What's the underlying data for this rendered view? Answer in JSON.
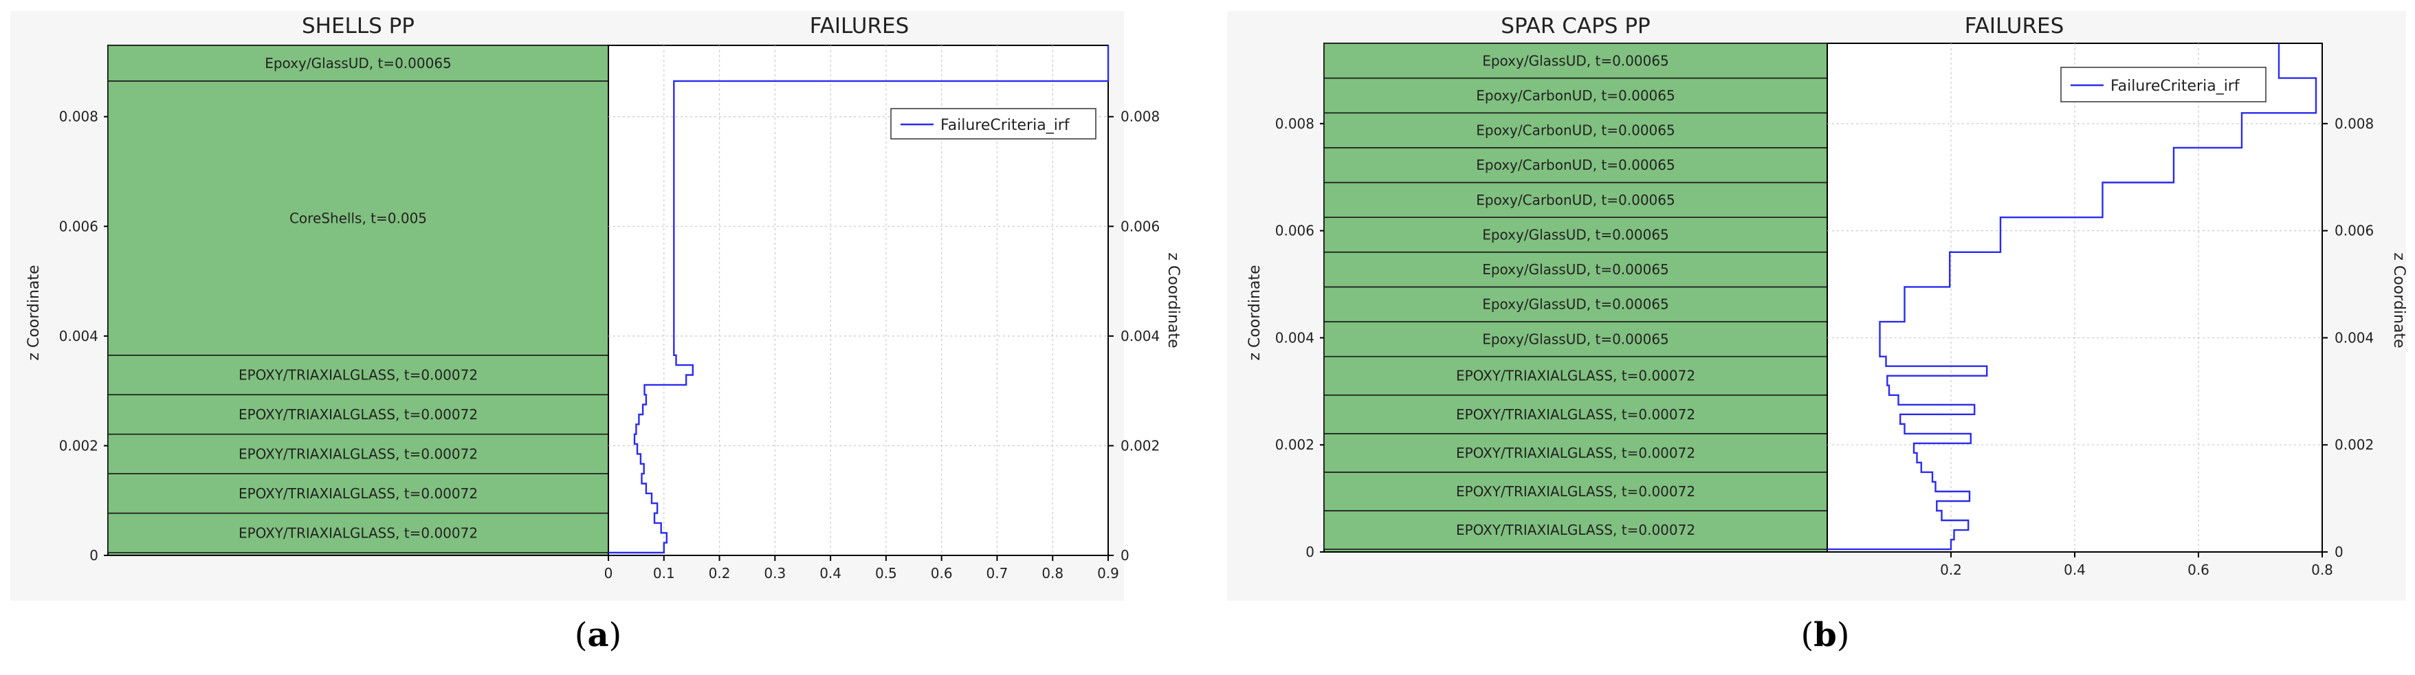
{
  "chart_data": [
    {
      "type": "line",
      "panel_label": "a",
      "stack_title": "SHELLS PP",
      "plot_title": "FAILURES",
      "ylabel": "z Coordinate",
      "right_ylabel": "z Coordinate",
      "ylim": [
        0,
        0.0093
      ],
      "yticks": [
        0,
        0.002,
        0.004,
        0.006,
        0.008
      ],
      "ytick_labels": [
        "0",
        "0.002",
        "0.004",
        "0.006",
        "0.008"
      ],
      "xlim": [
        0,
        0.9
      ],
      "xticks": [
        0,
        0.1,
        0.2,
        0.3,
        0.4,
        0.5,
        0.6,
        0.7,
        0.8,
        0.9
      ],
      "xtick_labels": [
        "0",
        "0.1",
        "0.2",
        "0.3",
        "0.4",
        "0.5",
        "0.6",
        "0.7",
        "0.8",
        "0.9"
      ],
      "grid": true,
      "legend_position": "top-right",
      "plies": [
        {
          "label": "EPOXY/TRIAXIALGLASS, t=0.00072",
          "z0": 5e-05,
          "z1": 0.00077
        },
        {
          "label": "EPOXY/TRIAXIALGLASS, t=0.00072",
          "z0": 0.00077,
          "z1": 0.00149
        },
        {
          "label": "EPOXY/TRIAXIALGLASS, t=0.00072",
          "z0": 0.00149,
          "z1": 0.00221
        },
        {
          "label": "EPOXY/TRIAXIALGLASS, t=0.00072",
          "z0": 0.00221,
          "z1": 0.00293
        },
        {
          "label": "EPOXY/TRIAXIALGLASS, t=0.00072",
          "z0": 0.00293,
          "z1": 0.00365
        },
        {
          "label": "CoreShells, t=0.005",
          "z0": 0.00365,
          "z1": 0.00865
        },
        {
          "label": "Epoxy/GlassUD, t=0.00065",
          "z0": 0.00865,
          "z1": 0.0093
        }
      ],
      "series": [
        {
          "name": "FailureCriteria_irf",
          "color": "#2b2bef",
          "points": [
            [
              0.0,
              5e-05
            ],
            [
              0.1,
              5e-05
            ],
            [
              0.1,
              0.00023
            ],
            [
              0.105,
              0.00023
            ],
            [
              0.105,
              0.00041
            ],
            [
              0.095,
              0.00041
            ],
            [
              0.095,
              0.00059
            ],
            [
              0.083,
              0.00059
            ],
            [
              0.083,
              0.00077
            ],
            [
              0.088,
              0.00077
            ],
            [
              0.088,
              0.00095
            ],
            [
              0.078,
              0.00095
            ],
            [
              0.078,
              0.00113
            ],
            [
              0.068,
              0.00113
            ],
            [
              0.068,
              0.00131
            ],
            [
              0.06,
              0.00131
            ],
            [
              0.06,
              0.00149
            ],
            [
              0.064,
              0.00149
            ],
            [
              0.064,
              0.00167
            ],
            [
              0.058,
              0.00167
            ],
            [
              0.058,
              0.00185
            ],
            [
              0.052,
              0.00185
            ],
            [
              0.052,
              0.00203
            ],
            [
              0.047,
              0.00203
            ],
            [
              0.047,
              0.00221
            ],
            [
              0.05,
              0.00221
            ],
            [
              0.05,
              0.00239
            ],
            [
              0.055,
              0.00239
            ],
            [
              0.055,
              0.00257
            ],
            [
              0.062,
              0.00257
            ],
            [
              0.062,
              0.00275
            ],
            [
              0.068,
              0.00275
            ],
            [
              0.068,
              0.00293
            ],
            [
              0.065,
              0.00293
            ],
            [
              0.065,
              0.00311
            ],
            [
              0.14,
              0.00311
            ],
            [
              0.14,
              0.00329
            ],
            [
              0.152,
              0.00329
            ],
            [
              0.152,
              0.00347
            ],
            [
              0.122,
              0.00347
            ],
            [
              0.122,
              0.00365
            ],
            [
              0.118,
              0.00365
            ],
            [
              0.118,
              0.00865
            ],
            [
              0.9,
              0.00865
            ],
            [
              0.9,
              0.0093
            ]
          ]
        }
      ]
    },
    {
      "type": "line",
      "panel_label": "b",
      "stack_title": "SPAR CAPS PP",
      "plot_title": "FAILURES",
      "ylabel": "z Coordinate",
      "right_ylabel": "z Coordinate",
      "ylim": [
        0,
        0.0095
      ],
      "yticks": [
        0,
        0.002,
        0.004,
        0.006,
        0.008
      ],
      "ytick_labels": [
        "0",
        "0.002",
        "0.004",
        "0.006",
        "0.008"
      ],
      "xlim": [
        0,
        0.8
      ],
      "xticks": [
        0.2,
        0.4,
        0.6,
        0.8
      ],
      "xtick_labels": [
        "0.2",
        "0.4",
        "0.6",
        "0.8"
      ],
      "grid": true,
      "legend_position": "top-right",
      "plies": [
        {
          "label": "EPOXY/TRIAXIALGLASS, t=0.00072",
          "z0": 5e-05,
          "z1": 0.00077
        },
        {
          "label": "EPOXY/TRIAXIALGLASS, t=0.00072",
          "z0": 0.00077,
          "z1": 0.00149
        },
        {
          "label": "EPOXY/TRIAXIALGLASS, t=0.00072",
          "z0": 0.00149,
          "z1": 0.00221
        },
        {
          "label": "EPOXY/TRIAXIALGLASS, t=0.00072",
          "z0": 0.00221,
          "z1": 0.00293
        },
        {
          "label": "EPOXY/TRIAXIALGLASS, t=0.00072",
          "z0": 0.00293,
          "z1": 0.00365
        },
        {
          "label": "Epoxy/GlassUD, t=0.00065",
          "z0": 0.00365,
          "z1": 0.0043
        },
        {
          "label": "Epoxy/GlassUD, t=0.00065",
          "z0": 0.0043,
          "z1": 0.00495
        },
        {
          "label": "Epoxy/GlassUD, t=0.00065",
          "z0": 0.00495,
          "z1": 0.0056
        },
        {
          "label": "Epoxy/GlassUD, t=0.00065",
          "z0": 0.0056,
          "z1": 0.00625
        },
        {
          "label": "Epoxy/CarbonUD, t=0.00065",
          "z0": 0.00625,
          "z1": 0.0069
        },
        {
          "label": "Epoxy/CarbonUD, t=0.00065",
          "z0": 0.0069,
          "z1": 0.00755
        },
        {
          "label": "Epoxy/CarbonUD, t=0.00065",
          "z0": 0.00755,
          "z1": 0.0082
        },
        {
          "label": "Epoxy/CarbonUD, t=0.00065",
          "z0": 0.0082,
          "z1": 0.00885
        },
        {
          "label": "Epoxy/GlassUD, t=0.00065",
          "z0": 0.00885,
          "z1": 0.0095
        }
      ],
      "series": [
        {
          "name": "FailureCriteria_irf",
          "color": "#2b2bef",
          "points": [
            [
              0.0,
              5e-05
            ],
            [
              0.2,
              5e-05
            ],
            [
              0.2,
              0.00023
            ],
            [
              0.205,
              0.00023
            ],
            [
              0.205,
              0.00041
            ],
            [
              0.228,
              0.00041
            ],
            [
              0.228,
              0.00059
            ],
            [
              0.185,
              0.00059
            ],
            [
              0.185,
              0.00077
            ],
            [
              0.177,
              0.00077
            ],
            [
              0.177,
              0.00095
            ],
            [
              0.23,
              0.00095
            ],
            [
              0.23,
              0.00113
            ],
            [
              0.175,
              0.00113
            ],
            [
              0.175,
              0.00131
            ],
            [
              0.17,
              0.00131
            ],
            [
              0.17,
              0.00149
            ],
            [
              0.152,
              0.00149
            ],
            [
              0.152,
              0.00167
            ],
            [
              0.145,
              0.00167
            ],
            [
              0.145,
              0.00185
            ],
            [
              0.14,
              0.00185
            ],
            [
              0.14,
              0.00203
            ],
            [
              0.232,
              0.00203
            ],
            [
              0.232,
              0.00221
            ],
            [
              0.125,
              0.00221
            ],
            [
              0.125,
              0.00239
            ],
            [
              0.118,
              0.00239
            ],
            [
              0.118,
              0.00257
            ],
            [
              0.238,
              0.00257
            ],
            [
              0.238,
              0.00275
            ],
            [
              0.115,
              0.00275
            ],
            [
              0.115,
              0.00293
            ],
            [
              0.1,
              0.00293
            ],
            [
              0.1,
              0.00311
            ],
            [
              0.097,
              0.00311
            ],
            [
              0.097,
              0.00329
            ],
            [
              0.258,
              0.00329
            ],
            [
              0.258,
              0.00347
            ],
            [
              0.095,
              0.00347
            ],
            [
              0.095,
              0.00365
            ],
            [
              0.085,
              0.00365
            ],
            [
              0.085,
              0.0043
            ],
            [
              0.125,
              0.0043
            ],
            [
              0.125,
              0.00495
            ],
            [
              0.198,
              0.00495
            ],
            [
              0.198,
              0.0056
            ],
            [
              0.28,
              0.0056
            ],
            [
              0.28,
              0.00625
            ],
            [
              0.445,
              0.00625
            ],
            [
              0.445,
              0.0069
            ],
            [
              0.56,
              0.0069
            ],
            [
              0.56,
              0.00755
            ],
            [
              0.67,
              0.00755
            ],
            [
              0.67,
              0.0082
            ],
            [
              0.79,
              0.0082
            ],
            [
              0.79,
              0.00885
            ],
            [
              0.73,
              0.00885
            ],
            [
              0.73,
              0.0095
            ]
          ]
        }
      ]
    }
  ]
}
